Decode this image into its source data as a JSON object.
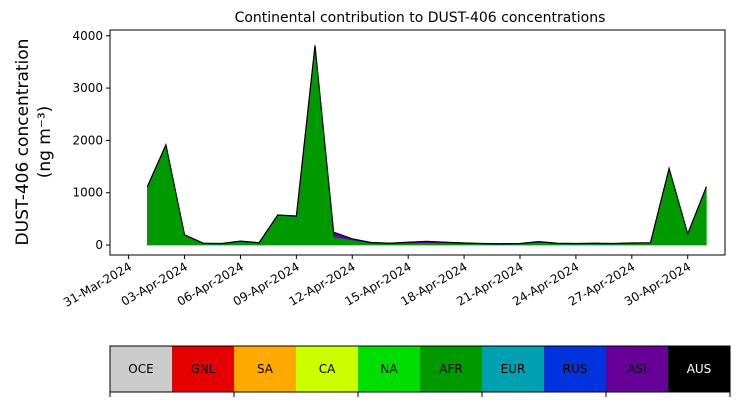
{
  "chart_data": {
    "type": "stacked-area",
    "title": "Continental contribution to DUST-406 concentrations",
    "ylabel": [
      "DUST-406 concentration",
      "(ng m⁻³)"
    ],
    "x": [
      "2024-04-01",
      "2024-04-02",
      "2024-04-03",
      "2024-04-04",
      "2024-04-05",
      "2024-04-06",
      "2024-04-07",
      "2024-04-08",
      "2024-04-09",
      "2024-04-10",
      "2024-04-11",
      "2024-04-12",
      "2024-04-13",
      "2024-04-14",
      "2024-04-15",
      "2024-04-16",
      "2024-04-17",
      "2024-04-18",
      "2024-04-19",
      "2024-04-20",
      "2024-04-21",
      "2024-04-22",
      "2024-04-23",
      "2024-04-24",
      "2024-04-25",
      "2024-04-26",
      "2024-04-27",
      "2024-04-28",
      "2024-04-29",
      "2024-04-30",
      "2024-05-01"
    ],
    "xlim": [
      "2024-03-30",
      "2024-05-02"
    ],
    "xticks": [
      {
        "value": "2024-03-31",
        "label": "31-Mar-2024"
      },
      {
        "value": "2024-04-03",
        "label": "03-Apr-2024"
      },
      {
        "value": "2024-04-06",
        "label": "06-Apr-2024"
      },
      {
        "value": "2024-04-09",
        "label": "09-Apr-2024"
      },
      {
        "value": "2024-04-12",
        "label": "12-Apr-2024"
      },
      {
        "value": "2024-04-15",
        "label": "15-Apr-2024"
      },
      {
        "value": "2024-04-18",
        "label": "18-Apr-2024"
      },
      {
        "value": "2024-04-21",
        "label": "21-Apr-2024"
      },
      {
        "value": "2024-04-24",
        "label": "24-Apr-2024"
      },
      {
        "value": "2024-04-27",
        "label": "27-Apr-2024"
      },
      {
        "value": "2024-04-30",
        "label": "30-Apr-2024"
      }
    ],
    "ylim": [
      -190,
      4110
    ],
    "yticks": [
      0,
      1000,
      2000,
      3000,
      4000
    ],
    "series": [
      {
        "name": "OCE",
        "color": "#cccccc",
        "values": [
          0,
          0,
          0,
          0,
          0,
          0,
          0,
          0,
          0,
          0,
          0,
          0,
          0,
          0,
          0,
          0,
          0,
          0,
          0,
          0,
          0,
          0,
          0,
          0,
          0,
          0,
          0,
          0,
          0,
          0,
          0
        ]
      },
      {
        "name": "GNL",
        "color": "#e60000",
        "values": [
          0,
          0,
          0,
          0,
          0,
          0,
          0,
          0,
          0,
          0,
          0,
          0,
          0,
          0,
          0,
          0,
          0,
          0,
          0,
          0,
          0,
          0,
          0,
          0,
          0,
          0,
          0,
          0,
          0,
          0,
          0
        ]
      },
      {
        "name": "SA",
        "color": "#ffaa00",
        "values": [
          0,
          0,
          0,
          0,
          0,
          0,
          0,
          0,
          0,
          0,
          0,
          0,
          0,
          0,
          0,
          0,
          0,
          0,
          0,
          0,
          0,
          0,
          0,
          0,
          0,
          0,
          0,
          0,
          0,
          0,
          0
        ]
      },
      {
        "name": "CA",
        "color": "#ccff00",
        "values": [
          0,
          0,
          0,
          0,
          0,
          0,
          0,
          0,
          0,
          0,
          0,
          0,
          0,
          0,
          0,
          0,
          0,
          0,
          0,
          0,
          0,
          0,
          0,
          0,
          0,
          0,
          0,
          0,
          0,
          0,
          0
        ]
      },
      {
        "name": "NA",
        "color": "#00dd00",
        "values": [
          5,
          5,
          5,
          5,
          5,
          5,
          5,
          5,
          5,
          5,
          5,
          5,
          5,
          5,
          5,
          5,
          5,
          5,
          5,
          5,
          5,
          5,
          5,
          5,
          5,
          5,
          5,
          5,
          5,
          5,
          5
        ]
      },
      {
        "name": "AFR",
        "color": "#009900",
        "values": [
          1100,
          1900,
          180,
          20,
          15,
          60,
          30,
          560,
          540,
          3800,
          150,
          90,
          30,
          20,
          30,
          40,
          30,
          20,
          15,
          10,
          15,
          50,
          20,
          15,
          20,
          15,
          25,
          30,
          1450,
          200,
          1100
        ]
      },
      {
        "name": "EUR",
        "color": "#00a0b0",
        "values": [
          0,
          0,
          0,
          0,
          0,
          0,
          0,
          0,
          0,
          0,
          0,
          0,
          0,
          0,
          0,
          0,
          0,
          0,
          0,
          0,
          0,
          0,
          0,
          0,
          0,
          0,
          0,
          0,
          0,
          0,
          0
        ]
      },
      {
        "name": "RUS",
        "color": "#0033dd",
        "values": [
          5,
          5,
          5,
          5,
          5,
          5,
          5,
          5,
          5,
          5,
          10,
          5,
          5,
          5,
          5,
          5,
          5,
          5,
          5,
          5,
          5,
          5,
          5,
          5,
          5,
          5,
          5,
          5,
          5,
          5,
          5
        ]
      },
      {
        "name": "ASI",
        "color": "#660099",
        "values": [
          5,
          5,
          5,
          5,
          5,
          5,
          5,
          5,
          5,
          5,
          80,
          20,
          10,
          5,
          15,
          20,
          15,
          10,
          5,
          5,
          5,
          5,
          5,
          5,
          5,
          5,
          5,
          5,
          5,
          5,
          5
        ]
      },
      {
        "name": "AUS",
        "color": "#000000",
        "values": [
          0,
          0,
          0,
          0,
          0,
          0,
          0,
          0,
          0,
          0,
          0,
          0,
          0,
          0,
          0,
          0,
          0,
          0,
          0,
          0,
          0,
          0,
          0,
          0,
          0,
          0,
          0,
          0,
          0,
          0,
          0
        ]
      }
    ]
  }
}
